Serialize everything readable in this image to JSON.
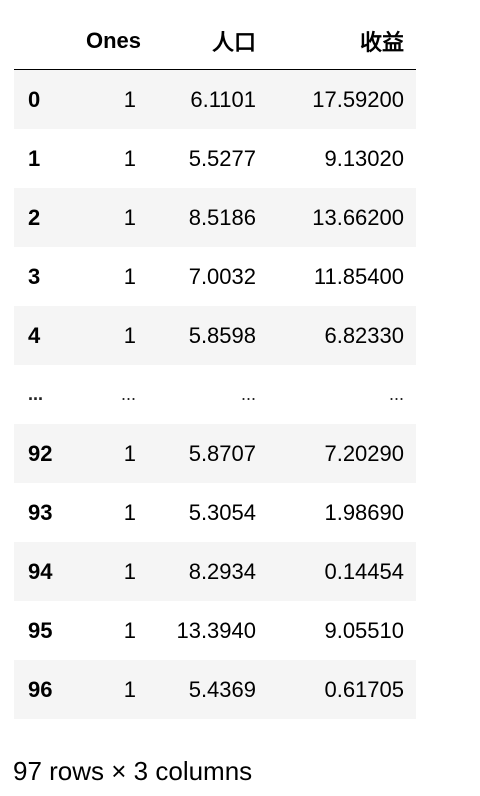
{
  "table": {
    "columns": [
      "Ones",
      "人口",
      "收益"
    ],
    "rows": [
      {
        "index": "0",
        "values": [
          "1",
          "6.1101",
          "17.59200"
        ]
      },
      {
        "index": "1",
        "values": [
          "1",
          "5.5277",
          "9.13020"
        ]
      },
      {
        "index": "2",
        "values": [
          "1",
          "8.5186",
          "13.66200"
        ]
      },
      {
        "index": "3",
        "values": [
          "1",
          "7.0032",
          "11.85400"
        ]
      },
      {
        "index": "4",
        "values": [
          "1",
          "5.8598",
          "6.82330"
        ]
      },
      {
        "index": "...",
        "values": [
          "...",
          "...",
          "..."
        ]
      },
      {
        "index": "92",
        "values": [
          "1",
          "5.8707",
          "7.20290"
        ]
      },
      {
        "index": "93",
        "values": [
          "1",
          "5.3054",
          "1.98690"
        ]
      },
      {
        "index": "94",
        "values": [
          "1",
          "8.2934",
          "0.14454"
        ]
      },
      {
        "index": "95",
        "values": [
          "1",
          "13.3940",
          "9.05510"
        ]
      },
      {
        "index": "96",
        "values": [
          "1",
          "5.4369",
          "0.61705"
        ]
      }
    ]
  },
  "footer": {
    "shape_text": "97 rows × 3 columns"
  }
}
